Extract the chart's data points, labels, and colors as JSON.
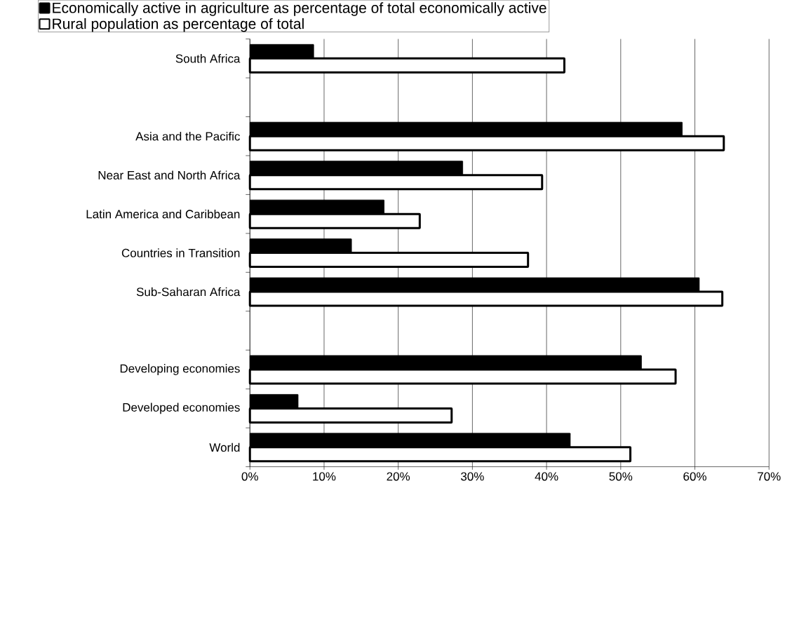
{
  "chart_data": {
    "type": "bar",
    "orientation": "horizontal",
    "categories": [
      "South Africa",
      null,
      "Asia and the Pacific",
      "Near East and North Africa",
      "Latin America and Caribbean",
      "Countries in Transition",
      "Sub-Saharan Africa",
      null,
      "Developing economies",
      "Developed economies",
      "World"
    ],
    "series": [
      {
        "name": "Economically active in agriculture as percentage of total economically active",
        "color": "#000000",
        "values": [
          8.6,
          null,
          58.3,
          28.7,
          18.1,
          13.7,
          60.6,
          null,
          52.8,
          6.5,
          43.2
        ]
      },
      {
        "name": "Rural population as percentage of total",
        "color": "#ffffff",
        "values": [
          42.4,
          null,
          63.9,
          39.4,
          22.9,
          37.5,
          63.7,
          null,
          57.4,
          27.2,
          51.3
        ]
      }
    ],
    "xlim": [
      0,
      70
    ],
    "xticks": [
      {
        "value": 0,
        "label": "0%"
      },
      {
        "value": 10,
        "label": "10%"
      },
      {
        "value": 20,
        "label": "20%"
      },
      {
        "value": 30,
        "label": "30%"
      },
      {
        "value": 40,
        "label": "40%"
      },
      {
        "value": 50,
        "label": "50%"
      },
      {
        "value": 60,
        "label": "60%"
      },
      {
        "value": 70,
        "label": "70%"
      }
    ],
    "grid": "x",
    "legend": "top"
  }
}
